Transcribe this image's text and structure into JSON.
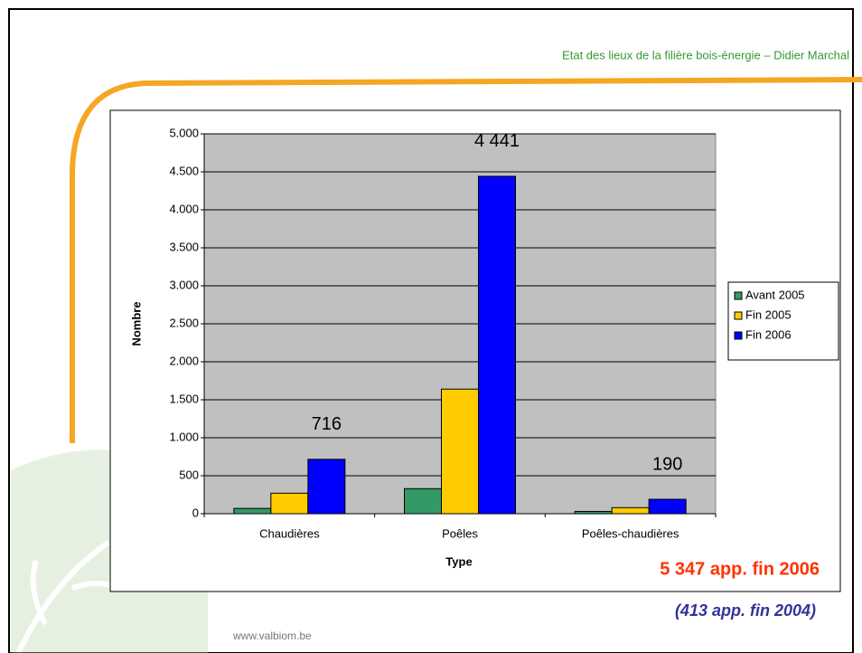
{
  "header": "Etat des lieux de la filière bois-énergie – Didier Marchal",
  "footer": "www.valbiom.be",
  "chart_data": {
    "type": "bar",
    "x_label": "Type",
    "y_label": "Nombre",
    "categories": [
      "Chaudières",
      "Poêles",
      "Poêles-chaudières"
    ],
    "series": [
      {
        "name": "Avant 2005",
        "color": "#339966",
        "values": [
          70,
          330,
          30
        ]
      },
      {
        "name": "Fin 2005",
        "color": "#FFCC00",
        "values": [
          270,
          1640,
          80
        ]
      },
      {
        "name": "Fin 2006",
        "color": "#0000FF",
        "values": [
          716,
          4441,
          190
        ],
        "value_labels": [
          "716",
          "4 441",
          "190"
        ]
      }
    ],
    "ylim": [
      0,
      5000
    ],
    "yticks": [
      0,
      500,
      {
        "value": 1000,
        "label": "1.000"
      },
      {
        "value": 1500,
        "label": "1.500"
      },
      {
        "value": 2000,
        "label": "2.000"
      },
      {
        "value": 2500,
        "label": "2.500"
      },
      {
        "value": 3000,
        "label": "3.000"
      },
      {
        "value": 3500,
        "label": "3.500"
      },
      {
        "value": 4000,
        "label": "4.000"
      },
      {
        "value": 4500,
        "label": "4.500"
      },
      {
        "value": 5000,
        "label": "5.000"
      }
    ],
    "grid": true,
    "legend": "right",
    "annotations": [
      "5 347 app. fin 2006",
      "(413 app. fin 2004)"
    ]
  }
}
